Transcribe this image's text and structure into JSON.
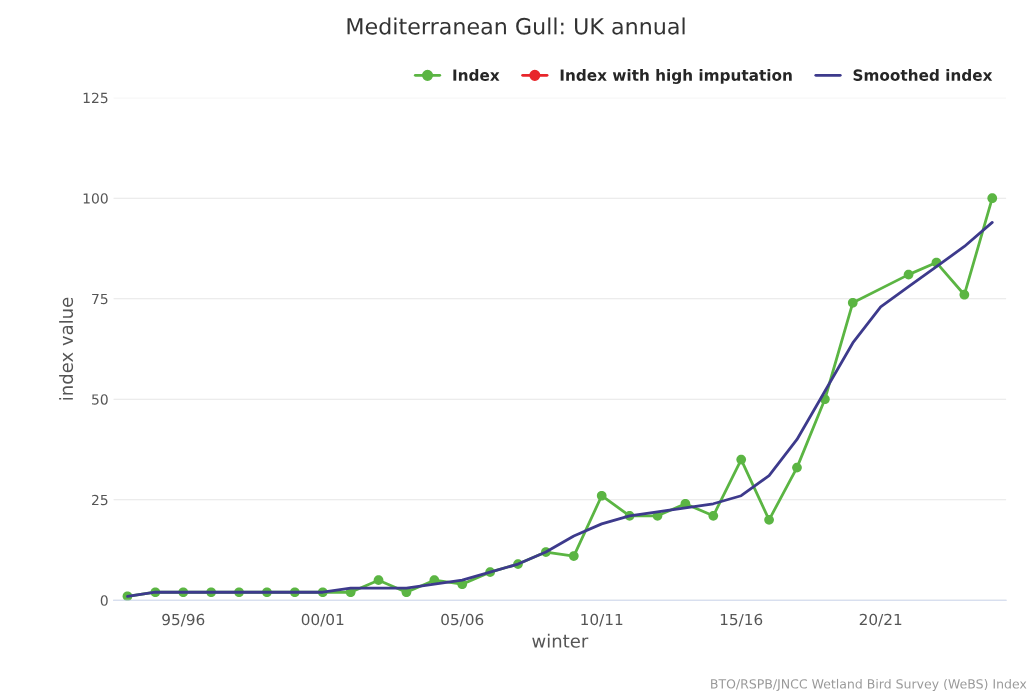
{
  "chart_data": {
    "type": "line",
    "title": "Mediterranean Gull: UK annual",
    "xlabel": "winter",
    "ylabel": "index value",
    "categories": [
      null,
      null,
      "95/96",
      null,
      null,
      null,
      null,
      "00/01",
      null,
      null,
      null,
      null,
      "05/06",
      null,
      null,
      null,
      null,
      "10/11",
      null,
      null,
      null,
      null,
      "15/16",
      null,
      null,
      null,
      null,
      "20/21",
      null,
      null,
      null,
      null
    ],
    "series": [
      {
        "name": "Index",
        "color": "#5bb543",
        "marker": "circle",
        "values": [
          1,
          2,
          2,
          2,
          2,
          2,
          2,
          2,
          2,
          5,
          2,
          5,
          4,
          7,
          9,
          12,
          11,
          26,
          21,
          21,
          24,
          21,
          35,
          20,
          33,
          50,
          74,
          null,
          81,
          84,
          76,
          100
        ]
      },
      {
        "name": "Index with high imputation",
        "color": "#e8262b",
        "marker": "circle",
        "values": [
          null,
          null,
          null,
          null,
          null,
          null,
          null,
          null,
          null,
          null,
          null,
          null,
          null,
          null,
          null,
          null,
          null,
          null,
          null,
          null,
          null,
          null,
          null,
          null,
          null,
          null,
          null,
          null,
          null,
          null,
          null,
          null
        ]
      },
      {
        "name": "Smoothed index",
        "color": "#3d3a8c",
        "marker": "none",
        "values": [
          1,
          2,
          2,
          2,
          2,
          2,
          2,
          2,
          3,
          3,
          3,
          4,
          5,
          7,
          9,
          12,
          16,
          19,
          21,
          22,
          23,
          24,
          26,
          31,
          40,
          52,
          64,
          73,
          78,
          83,
          88,
          94
        ]
      }
    ],
    "ylim": [
      0,
      125
    ],
    "yticks": [
      0,
      25,
      50,
      75,
      100,
      125
    ],
    "grid": "y",
    "legend": "top right",
    "annotations": [
      "BTO/RSPB/JNCC Wetland Bird Survey (WeBS) Index"
    ]
  }
}
